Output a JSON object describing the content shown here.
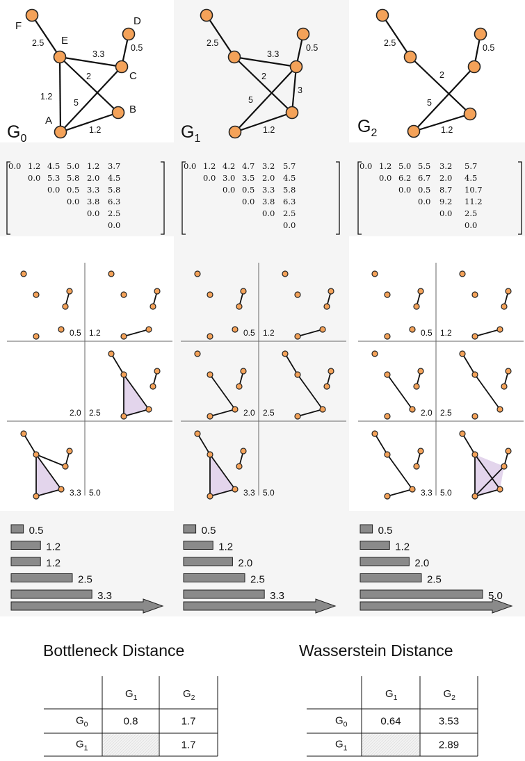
{
  "graphs": [
    {
      "title": "G",
      "sub": "0",
      "node_labels": [
        "F",
        "E",
        "D",
        "C",
        "B",
        "A"
      ],
      "edge_weights": [
        "2.5",
        "3.3",
        "0.5",
        "2",
        "5",
        "1.2",
        "1.2"
      ]
    },
    {
      "title": "G",
      "sub": "1",
      "edge_weights": [
        "2.5",
        "3.3",
        "0.5",
        "2",
        "3",
        "5",
        "1.2"
      ]
    },
    {
      "title": "G",
      "sub": "2",
      "edge_weights": [
        "2.5",
        "0.5",
        "2",
        "5",
        "1.2"
      ]
    }
  ],
  "matrices": [
    [
      [
        "0.0",
        "1.2",
        "4.5",
        "5.0",
        "1.2",
        "3.7"
      ],
      [
        "0.0",
        "5.3",
        "5.8",
        "2.0",
        "4.5"
      ],
      [
        "0.0",
        "0.5",
        "3.3",
        "5.8"
      ],
      [
        "0.0",
        "3.8",
        "6.3"
      ],
      [
        "0.0",
        "2.5"
      ],
      [
        "0.0"
      ]
    ],
    [
      [
        "0.0",
        "1.2",
        "4.2",
        "4.7",
        "3.2",
        "5.7"
      ],
      [
        "0.0",
        "3.0",
        "3.5",
        "2.0",
        "4.5"
      ],
      [
        "0.0",
        "0.5",
        "3.3",
        "5.8"
      ],
      [
        "0.0",
        "3.8",
        "6.3"
      ],
      [
        "0.0",
        "2.5"
      ],
      [
        "0.0"
      ]
    ],
    [
      [
        "0.0",
        "1.2",
        "5.0",
        "5.5",
        "3.2",
        "5.7"
      ],
      [
        "0.0",
        "6.2",
        "6.7",
        "2.0",
        "4.5"
      ],
      [
        "0.0",
        "0.5",
        "8.7",
        "10.7"
      ],
      [
        "0.0",
        "9.2",
        "11.2"
      ],
      [
        "0.0",
        "2.5"
      ],
      [
        "0.0"
      ]
    ]
  ],
  "filtrations": [
    [
      "0.5",
      "1.2",
      "2.0",
      "2.5",
      "3.3",
      "5.0"
    ],
    [
      "0.5",
      "1.2",
      "2.0",
      "2.5",
      "3.3",
      "5.0"
    ],
    [
      "0.5",
      "1.2",
      "2.0",
      "2.5",
      "3.3",
      "5.0"
    ]
  ],
  "barcodes": [
    [
      0.5,
      1.2,
      1.2,
      2.5,
      3.3
    ],
    [
      0.5,
      1.2,
      2.0,
      2.5,
      3.3
    ],
    [
      0.5,
      1.2,
      2.0,
      2.5,
      5.0
    ]
  ],
  "barcode_labels": [
    [
      "0.5",
      "1.2",
      "1.2",
      "2.5",
      "3.3"
    ],
    [
      "0.5",
      "1.2",
      "2.0",
      "2.5",
      "3.3"
    ],
    [
      "0.5",
      "1.2",
      "2.0",
      "2.5",
      "5.0"
    ]
  ],
  "tables": [
    {
      "title": "Bottleneck Distance",
      "col_headers": [
        {
          "base": "G",
          "sub": "1"
        },
        {
          "base": "G",
          "sub": "2"
        }
      ],
      "row_headers": [
        {
          "base": "G",
          "sub": "0"
        },
        {
          "base": "G",
          "sub": "1"
        }
      ],
      "cells": [
        [
          "0.8",
          "1.7"
        ],
        [
          "",
          "1.7"
        ]
      ]
    },
    {
      "title": "Wasserstein Distance",
      "col_headers": [
        {
          "base": "G",
          "sub": "1"
        },
        {
          "base": "G",
          "sub": "2"
        }
      ],
      "row_headers": [
        {
          "base": "G",
          "sub": "0"
        },
        {
          "base": "G",
          "sub": "1"
        }
      ],
      "cells": [
        [
          "0.64",
          "3.53"
        ],
        [
          "",
          "2.89"
        ]
      ]
    }
  ],
  "colors": {
    "node": "#f4a259",
    "bar": "#8a8a8a",
    "triangle": "#e3d5ec",
    "panel": "#f5f5f5"
  }
}
